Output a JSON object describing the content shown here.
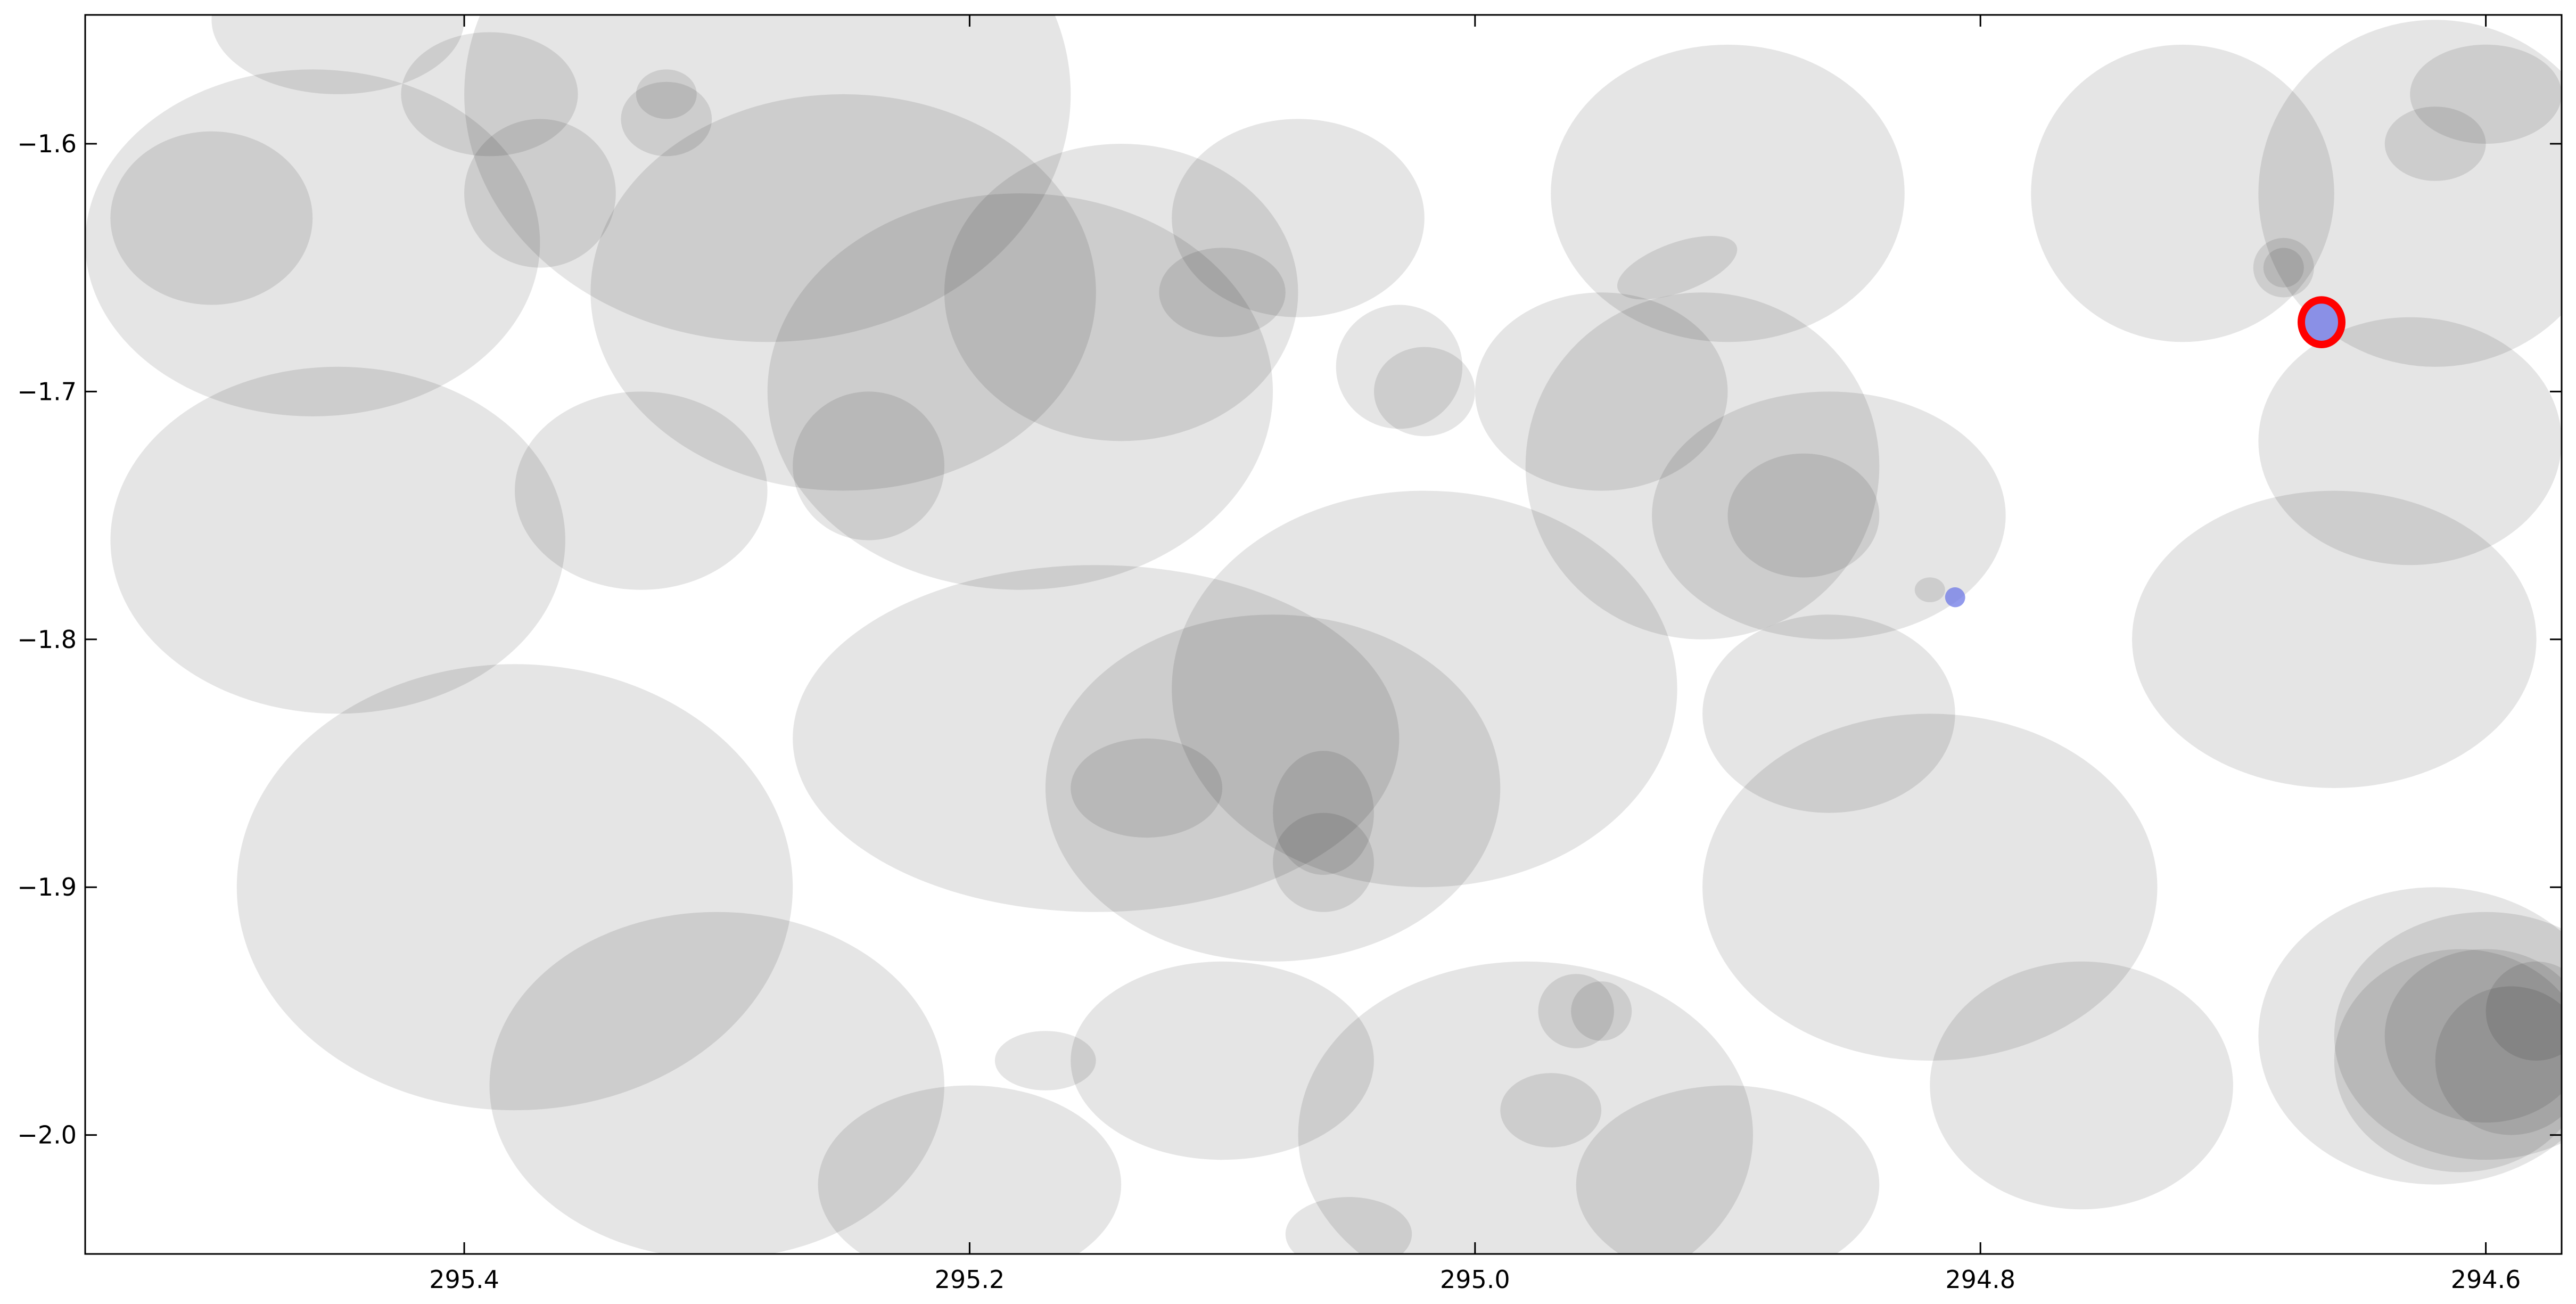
{
  "chart_data": {
    "type": "scatter",
    "title": "",
    "xlabel": "",
    "ylabel": "",
    "xlim": [
      295.55,
      294.57
    ],
    "ylim": [
      -2.048,
      -1.548
    ],
    "x_ticks": [
      295.4,
      295.2,
      295.0,
      294.8,
      294.6
    ],
    "x_tick_labels": [
      "295.4",
      "295.2",
      "295.0",
      "294.8",
      "294.6"
    ],
    "y_ticks": [
      -1.6,
      -1.7,
      -1.8,
      -1.9,
      -2.0
    ],
    "y_tick_labels": [
      "−1.6",
      "−1.7",
      "−1.8",
      "−1.9",
      "−2.0"
    ],
    "grid": false,
    "background_sources": {
      "color": "#000000",
      "opacity": 0.1,
      "ellipses": [
        {
          "x": 295.28,
          "y": -1.58,
          "rx": 0.12,
          "ry": 0.1,
          "angle": 0
        },
        {
          "x": 295.25,
          "y": -1.66,
          "rx": 0.1,
          "ry": 0.08,
          "angle": 0
        },
        {
          "x": 295.18,
          "y": -1.7,
          "rx": 0.1,
          "ry": 0.08,
          "angle": 0
        },
        {
          "x": 295.14,
          "y": -1.66,
          "rx": 0.07,
          "ry": 0.06,
          "angle": 0
        },
        {
          "x": 295.08,
          "y": -1.86,
          "rx": 0.09,
          "ry": 0.07,
          "angle": 0
        },
        {
          "x": 294.95,
          "y": -1.7,
          "rx": 0.05,
          "ry": 0.04,
          "angle": 0
        },
        {
          "x": 294.91,
          "y": -1.73,
          "rx": 0.07,
          "ry": 0.07,
          "angle": 0
        },
        {
          "x": 294.86,
          "y": -1.75,
          "rx": 0.07,
          "ry": 0.05,
          "angle": 0
        },
        {
          "x": 294.72,
          "y": -1.62,
          "rx": 0.06,
          "ry": 0.06,
          "angle": 0
        },
        {
          "x": 294.62,
          "y": -1.62,
          "rx": 0.07,
          "ry": 0.07,
          "angle": 0
        },
        {
          "x": 294.6,
          "y": -1.96,
          "rx": 0.06,
          "ry": 0.05,
          "angle": 0
        },
        {
          "x": 294.62,
          "y": -1.96,
          "rx": 0.07,
          "ry": 0.06,
          "angle": 0
        },
        {
          "x": 295.38,
          "y": -1.9,
          "rx": 0.11,
          "ry": 0.09,
          "angle": 0
        },
        {
          "x": 295.3,
          "y": -1.98,
          "rx": 0.09,
          "ry": 0.07,
          "angle": 0
        },
        {
          "x": 294.98,
          "y": -2.0,
          "rx": 0.09,
          "ry": 0.07,
          "angle": 0
        },
        {
          "x": 294.82,
          "y": -1.9,
          "rx": 0.09,
          "ry": 0.07,
          "angle": 0
        },
        {
          "x": 294.66,
          "y": -1.8,
          "rx": 0.08,
          "ry": 0.06,
          "angle": 0
        },
        {
          "x": 295.15,
          "y": -1.84,
          "rx": 0.12,
          "ry": 0.07,
          "angle": 0
        },
        {
          "x": 295.02,
          "y": -1.82,
          "rx": 0.1,
          "ry": 0.08,
          "angle": 0
        },
        {
          "x": 294.9,
          "y": -1.62,
          "rx": 0.07,
          "ry": 0.06,
          "angle": 0
        },
        {
          "x": 295.45,
          "y": -1.76,
          "rx": 0.09,
          "ry": 0.07,
          "angle": 0
        },
        {
          "x": 295.46,
          "y": -1.64,
          "rx": 0.09,
          "ry": 0.07,
          "angle": 0
        },
        {
          "x": 294.76,
          "y": -1.98,
          "rx": 0.06,
          "ry": 0.05,
          "angle": 0
        },
        {
          "x": 295.1,
          "y": -1.97,
          "rx": 0.06,
          "ry": 0.04,
          "angle": 0
        },
        {
          "x": 295.33,
          "y": -1.74,
          "rx": 0.05,
          "ry": 0.04,
          "angle": 0
        },
        {
          "x": 295.07,
          "y": -1.63,
          "rx": 0.05,
          "ry": 0.04,
          "angle": 0
        },
        {
          "x": 294.86,
          "y": -1.83,
          "rx": 0.05,
          "ry": 0.04,
          "angle": 0
        },
        {
          "x": 294.63,
          "y": -1.72,
          "rx": 0.06,
          "ry": 0.05,
          "angle": 0
        },
        {
          "x": 294.9,
          "y": -2.02,
          "rx": 0.06,
          "ry": 0.04,
          "angle": 0
        },
        {
          "x": 295.2,
          "y": -2.02,
          "rx": 0.06,
          "ry": 0.04,
          "angle": 0
        },
        {
          "x": 295.39,
          "y": -1.58,
          "rx": 0.035,
          "ry": 0.025,
          "angle": 0
        },
        {
          "x": 295.37,
          "y": -1.62,
          "rx": 0.03,
          "ry": 0.03,
          "angle": 0
        },
        {
          "x": 295.1,
          "y": -1.66,
          "rx": 0.025,
          "ry": 0.018,
          "angle": 0
        },
        {
          "x": 295.03,
          "y": -1.69,
          "rx": 0.025,
          "ry": 0.025,
          "angle": 0
        },
        {
          "x": 295.02,
          "y": -1.7,
          "rx": 0.02,
          "ry": 0.018,
          "angle": 0
        },
        {
          "x": 294.92,
          "y": -1.65,
          "rx": 0.025,
          "ry": 0.01,
          "angle": -20
        },
        {
          "x": 294.87,
          "y": -1.75,
          "rx": 0.03,
          "ry": 0.025,
          "angle": 0
        },
        {
          "x": 295.13,
          "y": -1.86,
          "rx": 0.03,
          "ry": 0.02,
          "angle": 0
        },
        {
          "x": 295.06,
          "y": -1.87,
          "rx": 0.02,
          "ry": 0.025,
          "angle": 0
        },
        {
          "x": 295.06,
          "y": -1.89,
          "rx": 0.02,
          "ry": 0.02,
          "angle": 0
        },
        {
          "x": 294.96,
          "y": -1.95,
          "rx": 0.015,
          "ry": 0.015,
          "angle": 0
        },
        {
          "x": 294.95,
          "y": -1.95,
          "rx": 0.012,
          "ry": 0.012,
          "angle": 0
        },
        {
          "x": 294.97,
          "y": -1.99,
          "rx": 0.02,
          "ry": 0.015,
          "angle": 0
        },
        {
          "x": 295.05,
          "y": -2.04,
          "rx": 0.025,
          "ry": 0.015,
          "angle": 0
        },
        {
          "x": 295.17,
          "y": -1.97,
          "rx": 0.02,
          "ry": 0.012,
          "angle": 0
        },
        {
          "x": 295.24,
          "y": -1.73,
          "rx": 0.03,
          "ry": 0.03,
          "angle": 0
        },
        {
          "x": 295.32,
          "y": -1.59,
          "rx": 0.018,
          "ry": 0.015,
          "angle": 0
        },
        {
          "x": 295.32,
          "y": -1.58,
          "rx": 0.012,
          "ry": 0.01,
          "angle": 0
        },
        {
          "x": 294.82,
          "y": -1.78,
          "rx": 0.006,
          "ry": 0.005,
          "angle": 0
        },
        {
          "x": 294.68,
          "y": -1.65,
          "rx": 0.012,
          "ry": 0.012,
          "angle": 0
        },
        {
          "x": 294.68,
          "y": -1.65,
          "rx": 0.008,
          "ry": 0.008,
          "angle": 0
        },
        {
          "x": 294.61,
          "y": -1.97,
          "rx": 0.05,
          "ry": 0.045,
          "angle": 0
        },
        {
          "x": 294.6,
          "y": -1.96,
          "rx": 0.04,
          "ry": 0.035,
          "angle": 0
        },
        {
          "x": 294.59,
          "y": -1.97,
          "rx": 0.03,
          "ry": 0.03,
          "angle": 0
        },
        {
          "x": 294.58,
          "y": -1.95,
          "rx": 0.02,
          "ry": 0.02,
          "angle": 0
        },
        {
          "x": 294.6,
          "y": -1.58,
          "rx": 0.03,
          "ry": 0.02,
          "angle": 0
        },
        {
          "x": 294.62,
          "y": -1.6,
          "rx": 0.02,
          "ry": 0.015,
          "angle": 0
        },
        {
          "x": 295.5,
          "y": -1.63,
          "rx": 0.04,
          "ry": 0.035,
          "angle": 0
        },
        {
          "x": 295.45,
          "y": -1.55,
          "rx": 0.05,
          "ry": 0.03,
          "angle": 0
        }
      ]
    },
    "target": {
      "x": 294.665,
      "y": -1.672,
      "fill": "#8a90e6",
      "edge_color": "#ff0000",
      "radius_x": 0.008,
      "radius_y": 0.009
    },
    "secondary_marker": {
      "x": 294.81,
      "y": -1.783,
      "fill": "#6e78e6",
      "radius_x": 0.004,
      "radius_y": 0.004,
      "angle": 30
    }
  }
}
